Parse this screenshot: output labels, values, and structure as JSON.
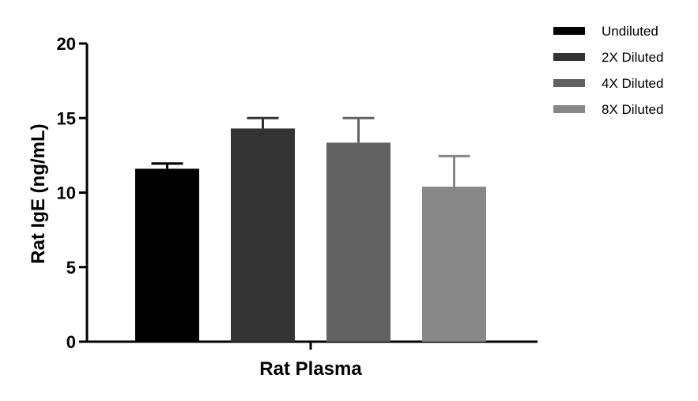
{
  "chart_data": {
    "type": "bar",
    "categories": [
      "Rat Plasma"
    ],
    "xlabel": "Rat Plasma",
    "ylabel": "Rat IgE (ng/mL)",
    "ylim": [
      0,
      20
    ],
    "yticks": [
      "0",
      "5",
      "10",
      "15",
      "20"
    ],
    "grid": false,
    "legend_position": "top-right",
    "series": [
      {
        "name": "Undiluted",
        "value": 11.6,
        "error": 0.35,
        "color": "#000000"
      },
      {
        "name": "2X Diluted",
        "value": 14.3,
        "error": 0.7,
        "color": "#333333"
      },
      {
        "name": "4X Diluted",
        "value": 13.35,
        "error": 1.65,
        "color": "#626262"
      },
      {
        "name": "8X Diluted",
        "value": 10.4,
        "error": 2.05,
        "color": "#888888"
      }
    ]
  }
}
